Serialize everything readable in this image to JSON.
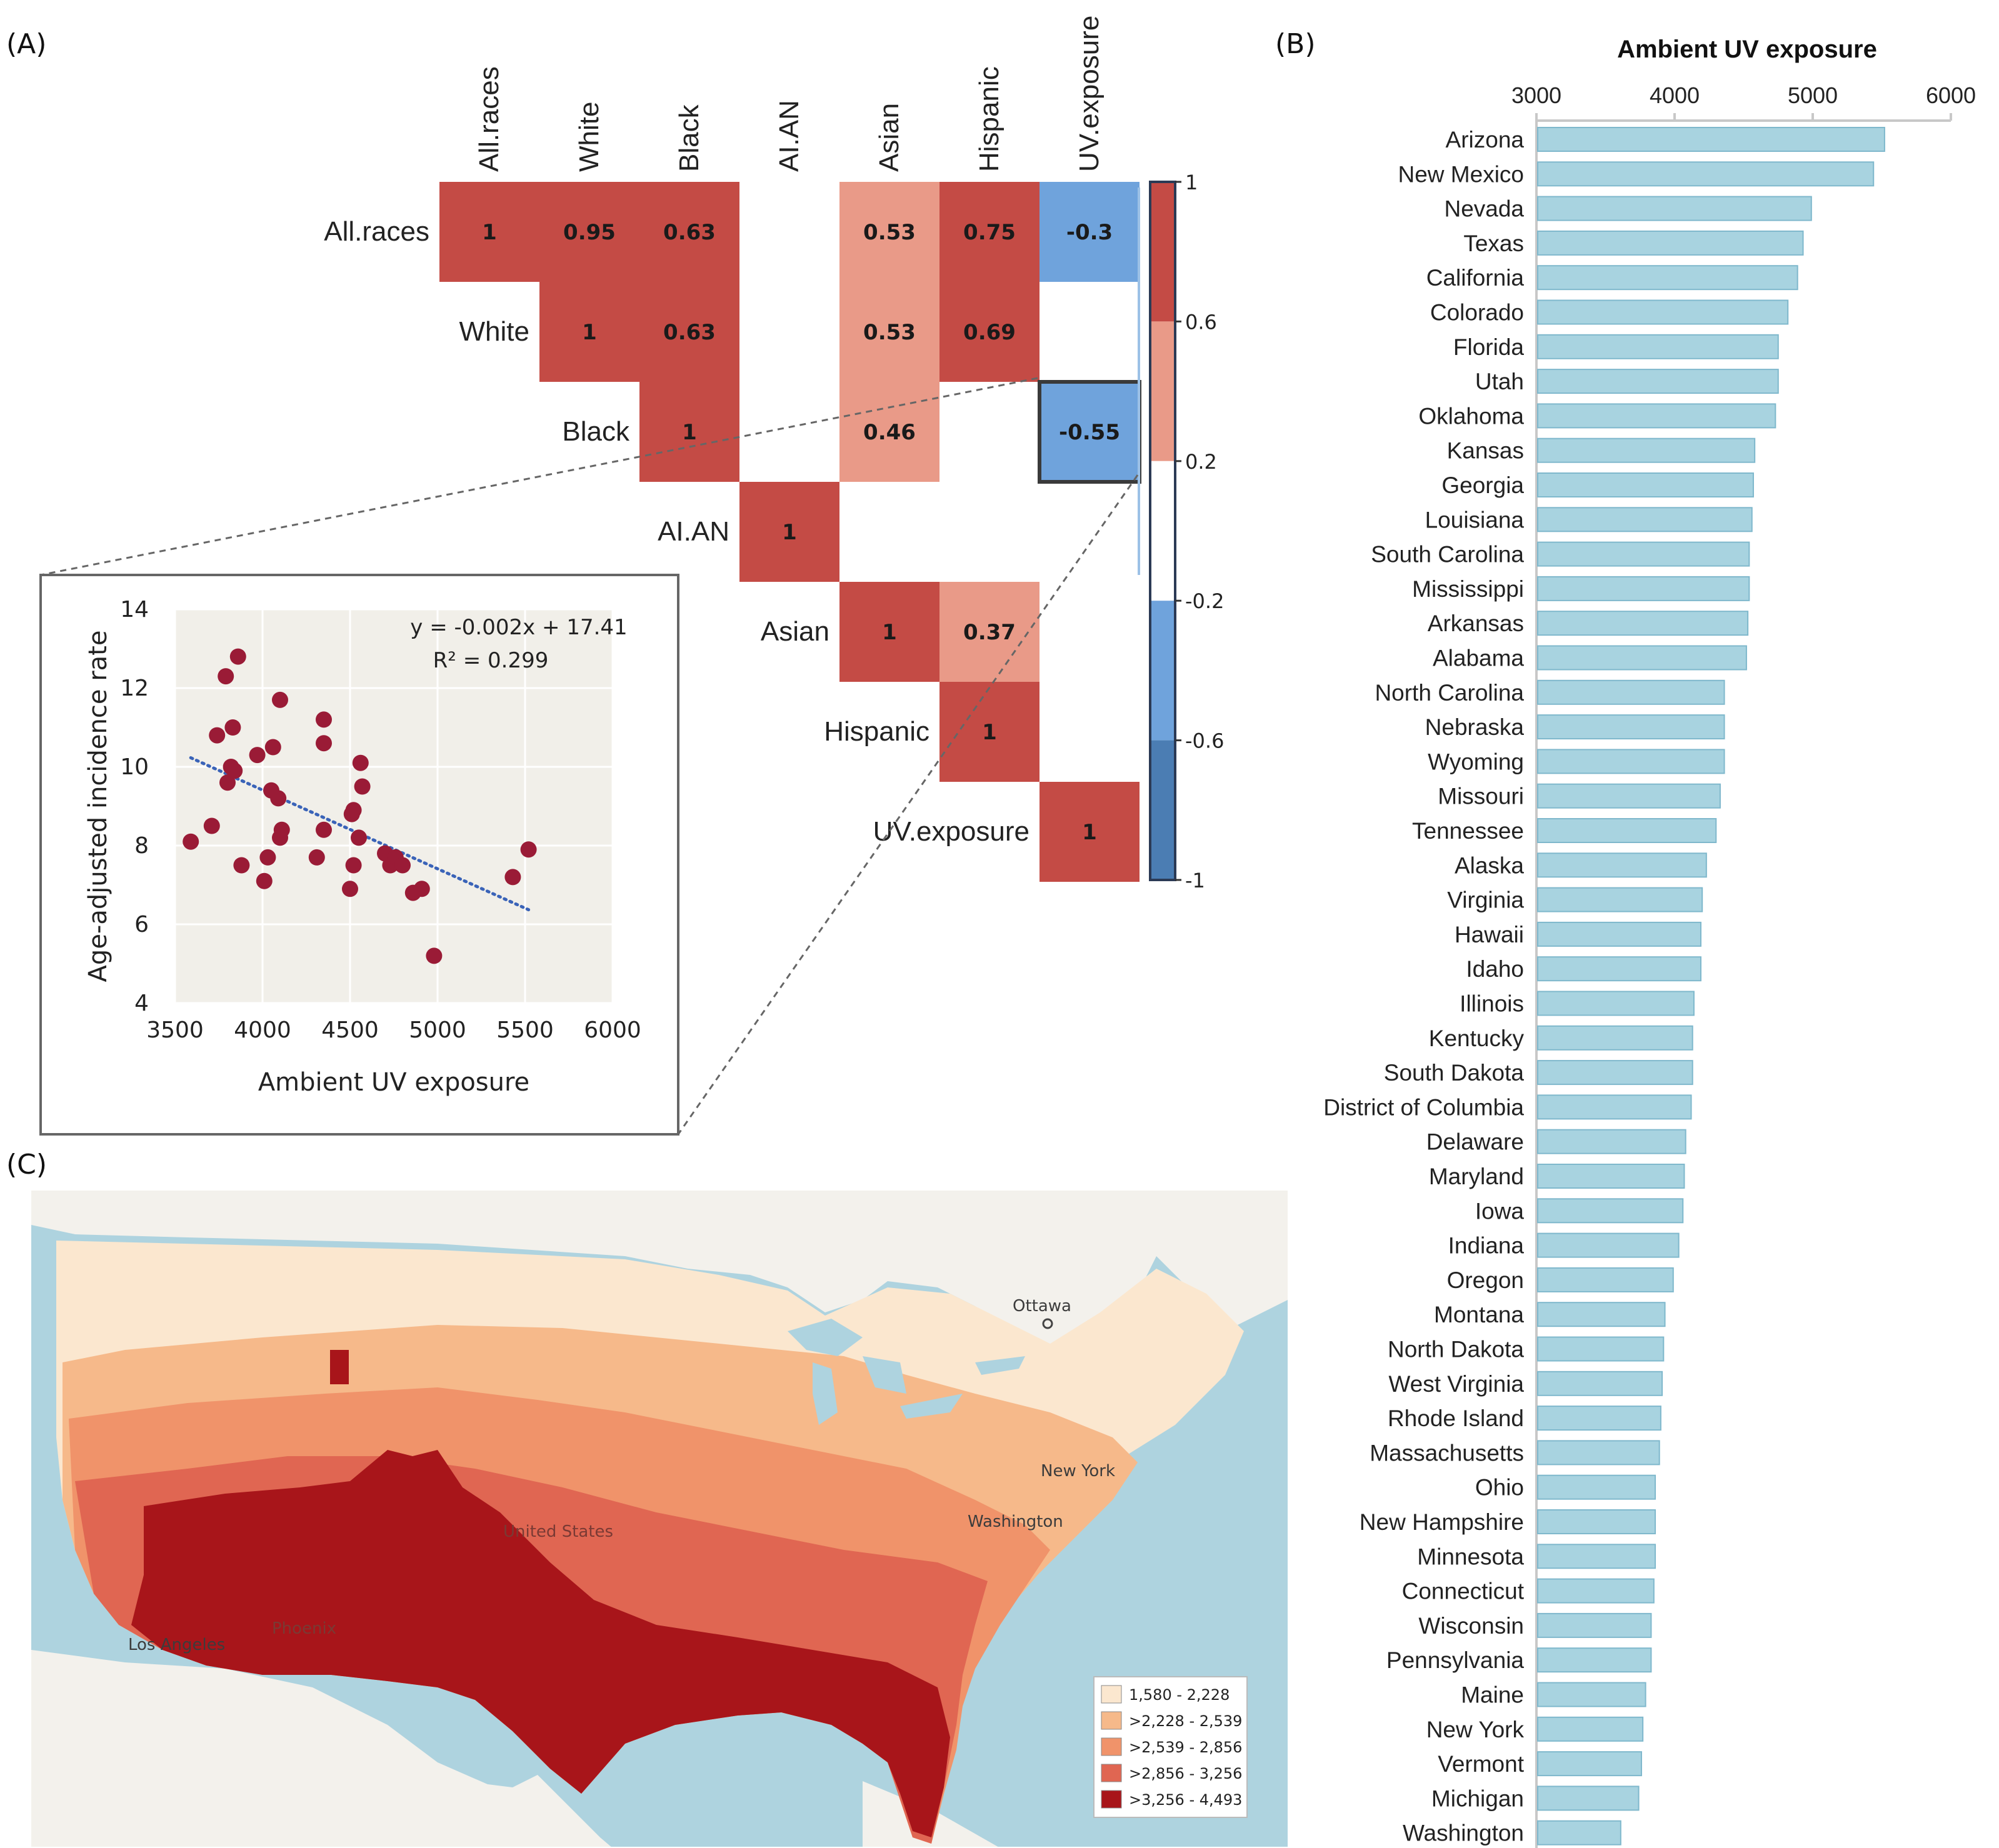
{
  "panel_labels": {
    "a": "(A)",
    "b": "(B)",
    "c": "(C)"
  },
  "colors": {
    "strong_pos": "#c44b45",
    "mid_pos": "#e99a88",
    "weak_neg": "#6fa3dc",
    "strong_neg": "#4b7db3",
    "bar": "#a8d3e0",
    "bar_edge": "#7fb8cc",
    "scatter_point": "#9a1b36",
    "scatter_bg": "#f1efe9",
    "trend": "#3a63b8"
  },
  "chart_data": [
    {
      "type": "heatmap",
      "id": "correlation-matrix",
      "row_labels": [
        "All.races",
        "White",
        "Black",
        "AI.AN",
        "Asian",
        "Hispanic",
        "UV.exposure"
      ],
      "col_labels": [
        "All.races",
        "White",
        "Black",
        "AI.AN",
        "Asian",
        "Hispanic",
        "UV.exposure"
      ],
      "cells": [
        {
          "row": 0,
          "col": 0,
          "value": 1,
          "label": "1"
        },
        {
          "row": 0,
          "col": 1,
          "value": 0.95,
          "label": "0.95"
        },
        {
          "row": 0,
          "col": 2,
          "value": 0.63,
          "label": "0.63"
        },
        {
          "row": 0,
          "col": 4,
          "value": 0.53,
          "label": "0.53"
        },
        {
          "row": 0,
          "col": 5,
          "value": 0.75,
          "label": "0.75"
        },
        {
          "row": 0,
          "col": 6,
          "value": -0.3,
          "label": "-0.3"
        },
        {
          "row": 1,
          "col": 1,
          "value": 1,
          "label": "1"
        },
        {
          "row": 1,
          "col": 2,
          "value": 0.63,
          "label": "0.63"
        },
        {
          "row": 1,
          "col": 4,
          "value": 0.53,
          "label": "0.53"
        },
        {
          "row": 1,
          "col": 5,
          "value": 0.69,
          "label": "0.69"
        },
        {
          "row": 2,
          "col": 2,
          "value": 1,
          "label": "1"
        },
        {
          "row": 2,
          "col": 4,
          "value": 0.46,
          "label": "0.46"
        },
        {
          "row": 2,
          "col": 6,
          "value": -0.55,
          "label": "-0.55"
        },
        {
          "row": 3,
          "col": 3,
          "value": 1,
          "label": "1"
        },
        {
          "row": 4,
          "col": 4,
          "value": 1,
          "label": "1"
        },
        {
          "row": 4,
          "col": 5,
          "value": 0.37,
          "label": "0.37"
        },
        {
          "row": 5,
          "col": 5,
          "value": 1,
          "label": "1"
        },
        {
          "row": 6,
          "col": 6,
          "value": 1,
          "label": "1"
        }
      ],
      "highlight": {
        "row": 2,
        "col": 6
      },
      "colorbar": {
        "ticks": [
          "1",
          "0.6",
          "0.2",
          "-0.2",
          "-0.6",
          "-1"
        ],
        "range": [
          -1,
          1
        ]
      }
    },
    {
      "type": "scatter",
      "id": "incidence-vs-uv",
      "xlabel": "Ambient UV exposure",
      "ylabel": "Age-adjusted incidence rate",
      "xlim": [
        3500,
        6000
      ],
      "ylim": [
        4,
        14
      ],
      "xticks": [
        3500,
        4000,
        4500,
        5000,
        5500,
        6000
      ],
      "yticks": [
        4,
        6,
        8,
        10,
        12,
        14
      ],
      "equation": "y = -0.002x + 17.41",
      "r_squared": "R² = 0.299",
      "trendline": {
        "slope": -0.002,
        "intercept": 17.41,
        "x_range": [
          3590,
          5520
        ]
      },
      "points": [
        [
          3590,
          8.1
        ],
        [
          3710,
          8.5
        ],
        [
          3740,
          10.8
        ],
        [
          3790,
          12.3
        ],
        [
          3800,
          9.6
        ],
        [
          3820,
          10.0
        ],
        [
          3830,
          11.0
        ],
        [
          3840,
          9.9
        ],
        [
          3860,
          12.8
        ],
        [
          3880,
          7.5
        ],
        [
          3970,
          10.3
        ],
        [
          4010,
          7.1
        ],
        [
          4030,
          7.7
        ],
        [
          4050,
          9.4
        ],
        [
          4060,
          10.5
        ],
        [
          4090,
          9.2
        ],
        [
          4100,
          11.7
        ],
        [
          4100,
          8.2
        ],
        [
          4110,
          8.4
        ],
        [
          4310,
          7.7
        ],
        [
          4350,
          8.4
        ],
        [
          4350,
          11.2
        ],
        [
          4350,
          10.6
        ],
        [
          4500,
          6.9
        ],
        [
          4510,
          8.8
        ],
        [
          4520,
          8.9
        ],
        [
          4520,
          7.5
        ],
        [
          4550,
          8.2
        ],
        [
          4560,
          10.1
        ],
        [
          4570,
          9.5
        ],
        [
          4700,
          7.8
        ],
        [
          4730,
          7.5
        ],
        [
          4760,
          7.7
        ],
        [
          4800,
          7.5
        ],
        [
          4860,
          6.8
        ],
        [
          4910,
          6.9
        ],
        [
          4980,
          5.2
        ],
        [
          5430,
          7.2
        ],
        [
          5520,
          7.9
        ]
      ]
    },
    {
      "type": "bar",
      "id": "uv-by-state",
      "orientation": "horizontal",
      "title": "Ambient UV exposure",
      "xlim": [
        3000,
        6000
      ],
      "xticks": [
        3000,
        4000,
        5000,
        6000
      ],
      "categories": [
        "Arizona",
        "New Mexico",
        "Nevada",
        "Texas",
        "California",
        "Colorado",
        "Florida",
        "Utah",
        "Oklahoma",
        "Kansas",
        "Georgia",
        "Louisiana",
        "South Carolina",
        "Mississippi",
        "Arkansas",
        "Alabama",
        "North Carolina",
        "Nebraska",
        "Wyoming",
        "Missouri",
        "Tennessee",
        "Alaska",
        "Virginia",
        "Hawaii",
        "Idaho",
        "Illinois",
        "Kentucky",
        "South Dakota",
        "District of Columbia",
        "Delaware",
        "Maryland",
        "Iowa",
        "Indiana",
        "Oregon",
        "Montana",
        "North Dakota",
        "West Virginia",
        "Rhode Island",
        "Massachusetts",
        "Ohio",
        "New Hampshire",
        "Minnesota",
        "Connecticut",
        "Wisconsin",
        "Pennsylvania",
        "Maine",
        "New York",
        "Vermont",
        "Michigan",
        "Washington"
      ],
      "values": [
        5520,
        5440,
        4990,
        4930,
        4890,
        4820,
        4750,
        4750,
        4730,
        4580,
        4570,
        4560,
        4540,
        4540,
        4530,
        4520,
        4360,
        4360,
        4360,
        4330,
        4300,
        4230,
        4200,
        4190,
        4190,
        4140,
        4130,
        4130,
        4120,
        4080,
        4070,
        4060,
        4030,
        3990,
        3930,
        3920,
        3910,
        3900,
        3890,
        3860,
        3860,
        3860,
        3850,
        3830,
        3830,
        3790,
        3770,
        3760,
        3740,
        3610
      ]
    },
    {
      "type": "choropleth",
      "id": "us-uv-map",
      "legend": [
        "1,580 - 2,228",
        ">2,228 - 2,539",
        ">2,539 - 2,856",
        ">2,856 - 3,256",
        ">3,256 - 4,493"
      ],
      "legend_colors": [
        "#fbe7cf",
        "#f6b98a",
        "#f0936a",
        "#e06652",
        "#a8151a"
      ],
      "place_labels": [
        "Ottawa",
        "New York",
        "Washington",
        "United States",
        "Los Angeles",
        "Phoenix"
      ]
    }
  ]
}
